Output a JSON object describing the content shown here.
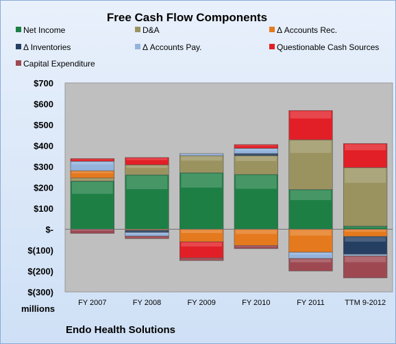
{
  "chart_data": {
    "type": "bar",
    "stacked": true,
    "title": "Free Cash Flow Components",
    "footer": "Endo Health Solutions",
    "unit_label": "millions",
    "categories": [
      "FY 2007",
      "FY 2008",
      "FY 2009",
      "FY 2010",
      "FY 2011",
      "TTM 9-2012"
    ],
    "ylim": [
      -300,
      700
    ],
    "yticks": [
      700,
      600,
      500,
      400,
      300,
      200,
      100,
      0,
      -100,
      -200,
      -300
    ],
    "ytick_labels": [
      "$700",
      "$600",
      "$500",
      "$400",
      "$300",
      "$200",
      "$100",
      "$-",
      "$(100)",
      "$(200)",
      "$(300)"
    ],
    "grid": false,
    "legend_position": "top",
    "series": [
      {
        "name": "Net Income",
        "color": "#1e7f45",
        "values": [
          230,
          260,
          270,
          262,
          190,
          15
        ]
      },
      {
        "name": "D&A",
        "color": "#9a9360",
        "values": [
          15,
          48,
          82,
          90,
          238,
          280
        ]
      },
      {
        "name": "Δ Accounts Rec.",
        "color": "#e5791d",
        "values": [
          35,
          -5,
          -60,
          -78,
          -110,
          -35
        ]
      },
      {
        "name": "Δ Inventories",
        "color": "#253f63",
        "values": [
          0,
          -10,
          0,
          10,
          0,
          -85
        ]
      },
      {
        "name": "Δ Accounts Pay.",
        "color": "#94b3dc",
        "values": [
          45,
          -18,
          10,
          25,
          -30,
          -8
        ]
      },
      {
        "name": "Questionable Cash Sources",
        "color": "#e21f26",
        "values": [
          13,
          35,
          -78,
          18,
          140,
          115
        ]
      },
      {
        "name": "Capital Expenditure",
        "color": "#9e4952",
        "values": [
          -20,
          -12,
          -12,
          -15,
          -60,
          -105
        ]
      }
    ]
  }
}
